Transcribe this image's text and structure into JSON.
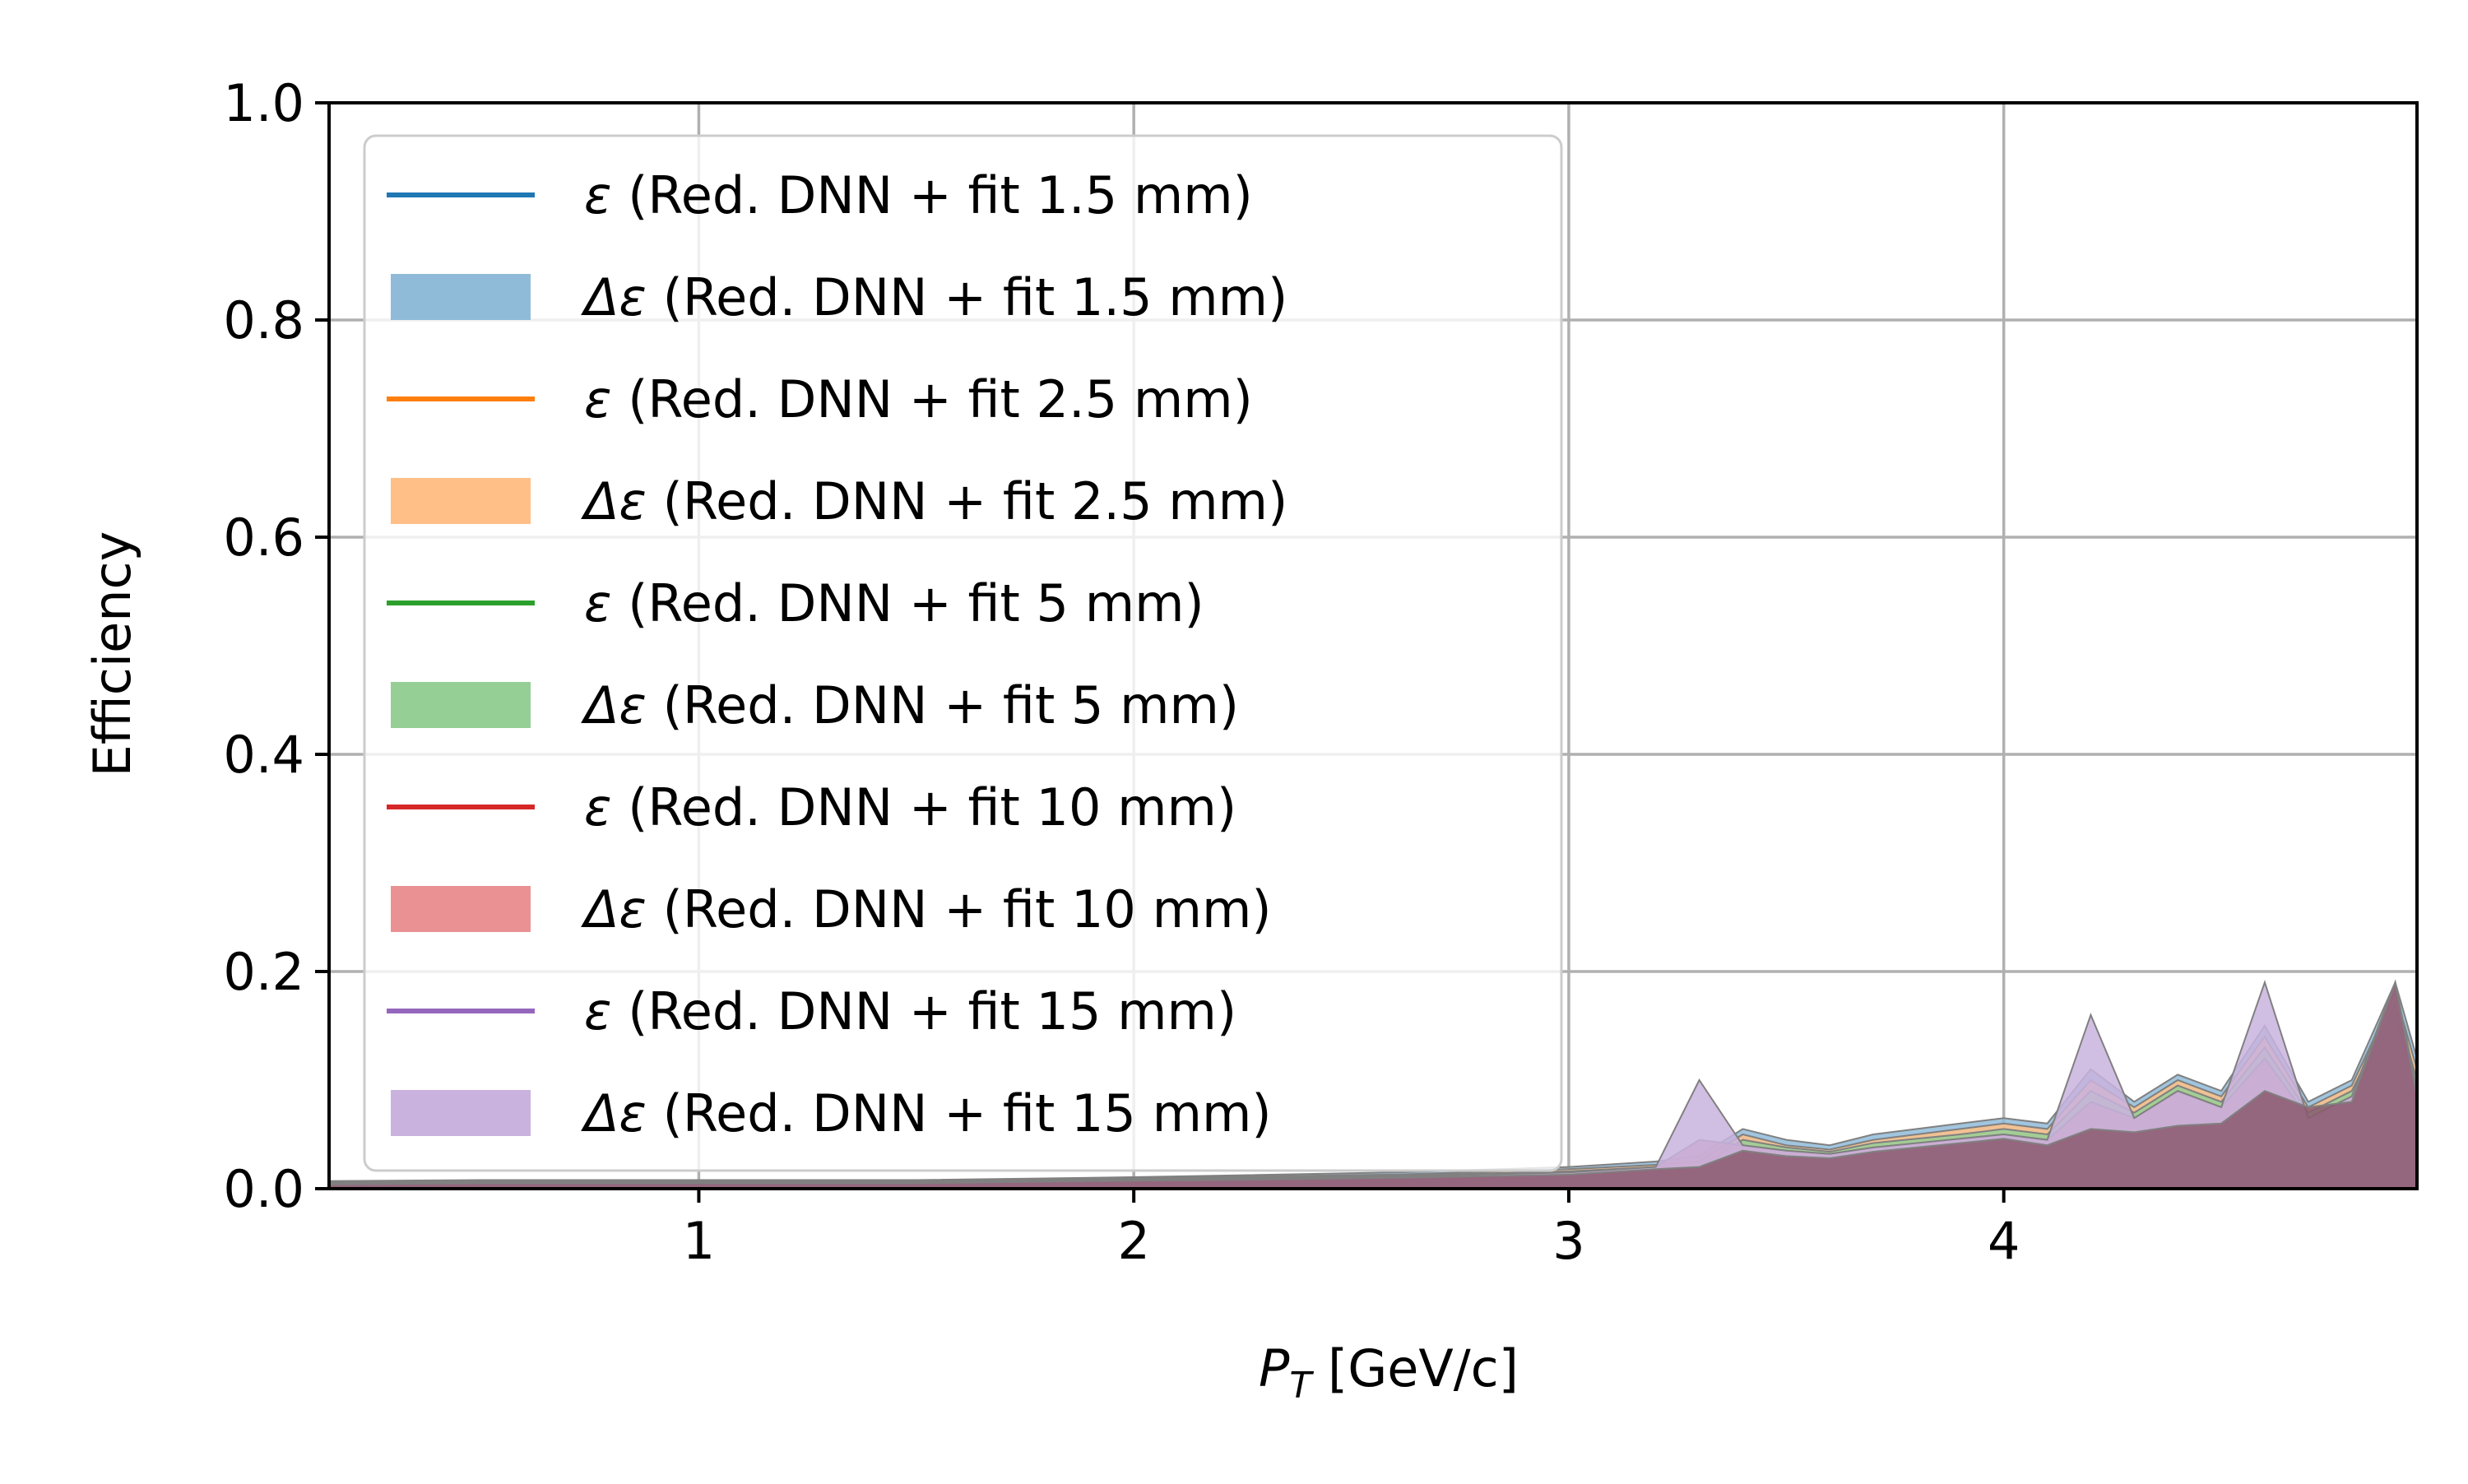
{
  "chart_data": {
    "type": "area",
    "title": "",
    "xlabel_main": "P",
    "xlabel_sub": "T",
    "xlabel_unit": " [GeV/c]",
    "ylabel": "Efficiency",
    "xlim": [
      0.15,
      4.95
    ],
    "ylim": [
      0.0,
      1.0
    ],
    "grid": true,
    "legend_position": "upper-left",
    "x_ticks": [
      1,
      2,
      3,
      4
    ],
    "x_tick_labels": [
      "1",
      "2",
      "3",
      "4"
    ],
    "y_ticks": [
      0.0,
      0.2,
      0.4,
      0.6,
      0.8,
      1.0
    ],
    "y_tick_labels": [
      "0.0",
      "0.2",
      "0.4",
      "0.6",
      "0.8",
      "1.0"
    ],
    "legend": [
      {
        "symbol": "ε",
        "label": " (Red. DNN + fit 1.5 mm)",
        "kind": "line",
        "color": "#1f77b4"
      },
      {
        "symbol": "Δε",
        "label": " (Red. DNN + fit 1.5 mm)",
        "kind": "band",
        "color": "#8fbbd9"
      },
      {
        "symbol": "ε",
        "label": " (Red. DNN + fit 2.5 mm)",
        "kind": "line",
        "color": "#ff7f0e"
      },
      {
        "symbol": "Δε",
        "label": " (Red. DNN + fit 2.5 mm)",
        "kind": "band",
        "color": "#ffbf86"
      },
      {
        "symbol": "ε",
        "label": " (Red. DNN + fit 5 mm)",
        "kind": "line",
        "color": "#2ca02c"
      },
      {
        "symbol": "Δε",
        "label": " (Red. DNN + fit 5 mm)",
        "kind": "band",
        "color": "#95cf95"
      },
      {
        "symbol": "ε",
        "label": " (Red. DNN + fit 10 mm)",
        "kind": "line",
        "color": "#d62728"
      },
      {
        "symbol": "Δε",
        "label": " (Red. DNN + fit 10 mm)",
        "kind": "band",
        "color": "#ea9293"
      },
      {
        "symbol": "ε",
        "label": " (Red. DNN + fit 15 mm)",
        "kind": "line",
        "color": "#9467bd"
      },
      {
        "symbol": "Δε",
        "label": " (Red. DNN + fit 15 mm)",
        "kind": "band",
        "color": "#c9b3de"
      }
    ],
    "series": [
      {
        "color": "#8fbbd9",
        "x": [
          0.15,
          0.5,
          1.0,
          1.5,
          1.9,
          2.2,
          2.6,
          3.0,
          3.2,
          3.3,
          3.4,
          3.5,
          3.6,
          3.7,
          3.8,
          3.9,
          4.0,
          4.1,
          4.2,
          4.3,
          4.4,
          4.5,
          4.6,
          4.7,
          4.8,
          4.9,
          4.95
        ],
        "values": [
          0.007,
          0.008,
          0.008,
          0.008,
          0.01,
          0.012,
          0.015,
          0.02,
          0.025,
          0.03,
          0.055,
          0.045,
          0.04,
          0.05,
          0.055,
          0.06,
          0.065,
          0.06,
          0.11,
          0.08,
          0.105,
          0.09,
          0.15,
          0.08,
          0.1,
          0.19,
          0.12
        ]
      },
      {
        "color": "#ffbf86",
        "x": [
          0.15,
          0.5,
          1.0,
          1.5,
          1.9,
          2.2,
          2.6,
          3.0,
          3.2,
          3.3,
          3.4,
          3.5,
          3.6,
          3.7,
          3.8,
          3.9,
          4.0,
          4.1,
          4.2,
          4.3,
          4.4,
          4.5,
          4.6,
          4.7,
          4.8,
          4.9,
          4.95
        ],
        "values": [
          0.006,
          0.007,
          0.007,
          0.007,
          0.009,
          0.011,
          0.013,
          0.018,
          0.022,
          0.025,
          0.05,
          0.04,
          0.036,
          0.045,
          0.05,
          0.055,
          0.06,
          0.055,
          0.1,
          0.075,
          0.1,
          0.085,
          0.14,
          0.075,
          0.095,
          0.18,
          0.11
        ]
      },
      {
        "color": "#95cf95",
        "x": [
          0.15,
          0.5,
          1.0,
          1.5,
          1.9,
          2.2,
          2.6,
          3.0,
          3.2,
          3.3,
          3.4,
          3.5,
          3.6,
          3.7,
          3.8,
          3.9,
          4.0,
          4.1,
          4.2,
          4.3,
          4.4,
          4.5,
          4.6,
          4.7,
          4.8,
          4.9,
          4.95
        ],
        "values": [
          0.006,
          0.006,
          0.007,
          0.007,
          0.008,
          0.01,
          0.012,
          0.016,
          0.02,
          0.02,
          0.045,
          0.038,
          0.034,
          0.042,
          0.046,
          0.05,
          0.055,
          0.05,
          0.09,
          0.07,
          0.095,
          0.08,
          0.13,
          0.07,
          0.09,
          0.17,
          0.1
        ]
      },
      {
        "color": "#d98a9a",
        "x": [
          0.15,
          0.5,
          1.0,
          1.5,
          1.9,
          2.2,
          2.6,
          3.0,
          3.2,
          3.3,
          3.4,
          3.5,
          3.6,
          3.7,
          3.8,
          3.9,
          4.0,
          4.1,
          4.2,
          4.3,
          4.4,
          4.5,
          4.6,
          4.7,
          4.8,
          4.9,
          4.95
        ],
        "values": [
          0.005,
          0.006,
          0.006,
          0.006,
          0.008,
          0.009,
          0.011,
          0.015,
          0.02,
          0.045,
          0.04,
          0.035,
          0.032,
          0.038,
          0.042,
          0.046,
          0.05,
          0.045,
          0.08,
          0.065,
          0.09,
          0.075,
          0.12,
          0.065,
          0.085,
          0.16,
          0.09
        ]
      },
      {
        "color": "#c9b3de",
        "x": [
          0.15,
          0.5,
          1.0,
          1.5,
          1.9,
          2.2,
          2.6,
          3.0,
          3.2,
          3.3,
          3.4,
          3.5,
          3.6,
          3.7,
          3.8,
          3.9,
          4.0,
          4.1,
          4.2,
          4.3,
          4.4,
          4.5,
          4.6,
          4.7,
          4.8,
          4.9,
          4.95
        ],
        "values": [
          0.005,
          0.006,
          0.006,
          0.006,
          0.008,
          0.009,
          0.011,
          0.015,
          0.02,
          0.1,
          0.04,
          0.035,
          0.032,
          0.038,
          0.042,
          0.046,
          0.05,
          0.045,
          0.16,
          0.065,
          0.09,
          0.075,
          0.19,
          0.065,
          0.085,
          0.19,
          0.09
        ]
      },
      {
        "color": "#8b5a6e",
        "x": [
          0.15,
          0.5,
          1.0,
          1.5,
          1.9,
          2.2,
          2.6,
          3.0,
          3.2,
          3.3,
          3.4,
          3.5,
          3.6,
          3.7,
          3.8,
          3.9,
          4.0,
          4.1,
          4.2,
          4.3,
          4.4,
          4.5,
          4.6,
          4.7,
          4.8,
          4.9,
          4.95
        ],
        "values": [
          0.004,
          0.005,
          0.005,
          0.005,
          0.007,
          0.008,
          0.01,
          0.013,
          0.018,
          0.02,
          0.035,
          0.03,
          0.028,
          0.034,
          0.038,
          0.042,
          0.046,
          0.04,
          0.055,
          0.052,
          0.058,
          0.06,
          0.09,
          0.075,
          0.08,
          0.19,
          0.085
        ]
      }
    ]
  }
}
